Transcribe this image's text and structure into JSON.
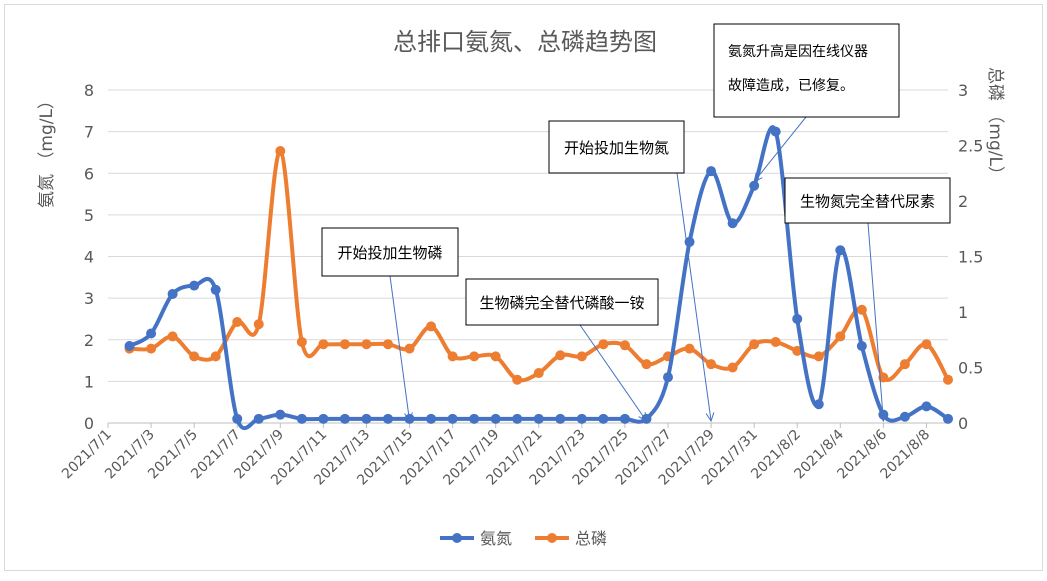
{
  "chart_data": {
    "type": "line",
    "title": "总排口氨氮、总磷趋势图",
    "ylabel_left": "氨氮 （mg/L）",
    "ylabel_right": "总磷 （mg/L）",
    "ylim_left": [
      0,
      8
    ],
    "ylim_right": [
      0,
      3
    ],
    "yticks_left": [
      "0",
      "1",
      "2",
      "3",
      "4",
      "5",
      "6",
      "7",
      "8"
    ],
    "yticks_right": [
      "0",
      "0.5",
      "1",
      "1.5",
      "2",
      "2.5",
      "3"
    ],
    "x_range": [
      "2021/7/1",
      "2021/8/9"
    ],
    "x_ticks": [
      "2021/7/1",
      "2021/7/3",
      "2021/7/5",
      "2021/7/7",
      "2021/7/9",
      "2021/7/11",
      "2021/7/13",
      "2021/7/15",
      "2021/7/17",
      "2021/7/19",
      "2021/7/21",
      "2021/7/23",
      "2021/7/25",
      "2021/7/27",
      "2021/7/29",
      "2021/7/31",
      "2021/8/2",
      "2021/8/4",
      "2021/8/6",
      "2021/8/8"
    ],
    "legend_position": "bottom",
    "grid": true,
    "series": [
      {
        "name": "氨氮",
        "axis": "left",
        "color": "#4472C4",
        "points": [
          [
            "2021/7/2",
            1.85
          ],
          [
            "2021/7/3",
            2.15
          ],
          [
            "2021/7/4",
            3.1
          ],
          [
            "2021/7/5",
            3.3
          ],
          [
            "2021/7/6",
            3.2
          ],
          [
            "2021/7/7",
            0.1
          ],
          [
            "2021/7/8",
            0.1
          ],
          [
            "2021/7/9",
            0.2
          ],
          [
            "2021/7/10",
            0.1
          ],
          [
            "2021/7/11",
            0.1
          ],
          [
            "2021/7/12",
            0.1
          ],
          [
            "2021/7/13",
            0.1
          ],
          [
            "2021/7/14",
            0.1
          ],
          [
            "2021/7/15",
            0.1
          ],
          [
            "2021/7/16",
            0.1
          ],
          [
            "2021/7/17",
            0.1
          ],
          [
            "2021/7/18",
            0.1
          ],
          [
            "2021/7/19",
            0.1
          ],
          [
            "2021/7/20",
            0.1
          ],
          [
            "2021/7/21",
            0.1
          ],
          [
            "2021/7/22",
            0.1
          ],
          [
            "2021/7/23",
            0.1
          ],
          [
            "2021/7/24",
            0.1
          ],
          [
            "2021/7/25",
            0.1
          ],
          [
            "2021/7/26",
            0.1
          ],
          [
            "2021/7/27",
            1.1
          ],
          [
            "2021/7/28",
            4.35
          ],
          [
            "2021/7/29",
            6.05
          ],
          [
            "2021/7/30",
            4.8
          ],
          [
            "2021/7/31",
            5.7
          ],
          [
            "2021/8/1",
            7.0
          ],
          [
            "2021/8/2",
            2.5
          ],
          [
            "2021/8/3",
            0.45
          ],
          [
            "2021/8/4",
            4.15
          ],
          [
            "2021/8/5",
            1.85
          ],
          [
            "2021/8/6",
            0.2
          ],
          [
            "2021/8/7",
            0.15
          ],
          [
            "2021/8/8",
            0.4
          ],
          [
            "2021/8/9",
            0.1
          ]
        ]
      },
      {
        "name": "总磷",
        "axis": "right",
        "color": "#ED7D31",
        "points": [
          [
            "2021/7/2",
            0.67
          ],
          [
            "2021/7/3",
            0.67
          ],
          [
            "2021/7/4",
            0.78
          ],
          [
            "2021/7/5",
            0.6
          ],
          [
            "2021/7/6",
            0.6
          ],
          [
            "2021/7/7",
            0.91
          ],
          [
            "2021/7/8",
            0.89
          ],
          [
            "2021/7/9",
            2.45
          ],
          [
            "2021/7/10",
            0.73
          ],
          [
            "2021/7/11",
            0.71
          ],
          [
            "2021/7/12",
            0.71
          ],
          [
            "2021/7/13",
            0.71
          ],
          [
            "2021/7/14",
            0.71
          ],
          [
            "2021/7/15",
            0.67
          ],
          [
            "2021/7/16",
            0.87
          ],
          [
            "2021/7/17",
            0.6
          ],
          [
            "2021/7/18",
            0.6
          ],
          [
            "2021/7/19",
            0.6
          ],
          [
            "2021/7/20",
            0.39
          ],
          [
            "2021/7/21",
            0.45
          ],
          [
            "2021/7/22",
            0.61
          ],
          [
            "2021/7/23",
            0.6
          ],
          [
            "2021/7/24",
            0.71
          ],
          [
            "2021/7/25",
            0.7
          ],
          [
            "2021/7/26",
            0.53
          ],
          [
            "2021/7/27",
            0.6
          ],
          [
            "2021/7/28",
            0.67
          ],
          [
            "2021/7/29",
            0.53
          ],
          [
            "2021/7/30",
            0.5
          ],
          [
            "2021/7/31",
            0.71
          ],
          [
            "2021/8/1",
            0.73
          ],
          [
            "2021/8/2",
            0.65
          ],
          [
            "2021/8/3",
            0.6
          ],
          [
            "2021/8/4",
            0.78
          ],
          [
            "2021/8/5",
            1.02
          ],
          [
            "2021/8/6",
            0.41
          ],
          [
            "2021/8/7",
            0.53
          ],
          [
            "2021/8/8",
            0.71
          ],
          [
            "2021/8/9",
            0.39
          ]
        ]
      }
    ],
    "annotations": [
      {
        "text": "开始投加生物磷",
        "target": [
          "2021/7/15",
          0
        ]
      },
      {
        "text": "生物磷完全替代磷酸一铵",
        "target": [
          "2021/7/26",
          0
        ]
      },
      {
        "text": "开始投加生物氮",
        "target": [
          "2021/7/29",
          0
        ]
      },
      {
        "text": "氨氮升高是因在线仪器故障造成，已修复。",
        "lines": [
          "氨氮升高是因在线仪器",
          "故障造成，已修复。"
        ],
        "target": [
          "2021/7/31",
          5.8
        ]
      },
      {
        "text": "生物氮完全替代尿素",
        "target": [
          "2021/8/6",
          0
        ]
      }
    ]
  }
}
